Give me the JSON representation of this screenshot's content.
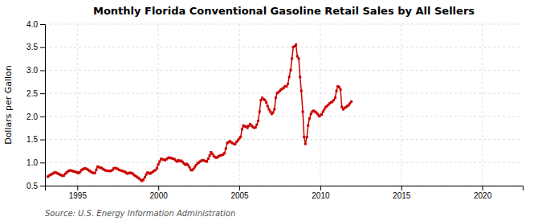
{
  "chart_data": {
    "type": "line",
    "title": "Monthly Florida Conventional Gasoline Retail Sales by All Sellers",
    "ylabel": "Dollars per Gallon",
    "source": "Source: U.S. Energy Information Administration",
    "color": "#cc0000",
    "marker": "square",
    "line_style": "solid",
    "grid": true,
    "xlim": [
      1993.0,
      2022.5
    ],
    "ylim": [
      0.5,
      4.0
    ],
    "xticks": [
      1995,
      2000,
      2005,
      2010,
      2015,
      2020
    ],
    "yticks": [
      0.5,
      {
        "value": 1.0,
        "label": "1.0"
      },
      1.5,
      {
        "value": 2.0,
        "label": "2.0"
      },
      2.5,
      {
        "value": 3.0,
        "label": "3.0"
      },
      3.5,
      {
        "value": 4.0,
        "label": "4.0"
      }
    ],
    "x": [
      1993.17,
      1993.25,
      1993.33,
      1993.42,
      1993.5,
      1993.58,
      1993.67,
      1993.75,
      1993.83,
      1993.92,
      1994.0,
      1994.08,
      1994.17,
      1994.25,
      1994.33,
      1994.42,
      1994.5,
      1994.58,
      1994.67,
      1994.75,
      1994.83,
      1994.92,
      1995.0,
      1995.08,
      1995.17,
      1995.25,
      1995.33,
      1995.42,
      1995.5,
      1995.58,
      1995.67,
      1995.75,
      1995.83,
      1995.92,
      1996.0,
      1996.08,
      1996.17,
      1996.25,
      1996.33,
      1996.42,
      1996.5,
      1996.58,
      1996.67,
      1996.75,
      1996.83,
      1996.92,
      1997.0,
      1997.08,
      1997.17,
      1997.25,
      1997.33,
      1997.42,
      1997.5,
      1997.58,
      1997.67,
      1997.75,
      1997.83,
      1997.92,
      1998.0,
      1998.08,
      1998.17,
      1998.25,
      1998.33,
      1998.42,
      1998.5,
      1998.58,
      1998.67,
      1998.75,
      1998.83,
      1998.92,
      1999.0,
      1999.08,
      1999.17,
      1999.25,
      1999.33,
      1999.42,
      1999.5,
      1999.58,
      1999.67,
      1999.75,
      1999.83,
      1999.92,
      2000.0,
      2000.08,
      2000.17,
      2000.25,
      2000.33,
      2000.42,
      2000.5,
      2000.58,
      2000.67,
      2000.75,
      2000.83,
      2000.92,
      2001.0,
      2001.08,
      2001.17,
      2001.25,
      2001.33,
      2001.42,
      2001.5,
      2001.58,
      2001.67,
      2001.75,
      2001.83,
      2001.92,
      2002.0,
      2002.08,
      2002.17,
      2002.25,
      2002.33,
      2002.42,
      2002.5,
      2002.58,
      2002.67,
      2002.75,
      2002.83,
      2002.92,
      2003.0,
      2003.08,
      2003.17,
      2003.25,
      2003.33,
      2003.42,
      2003.5,
      2003.58,
      2003.67,
      2003.75,
      2003.83,
      2003.92,
      2004.0,
      2004.08,
      2004.17,
      2004.25,
      2004.33,
      2004.42,
      2004.5,
      2004.58,
      2004.67,
      2004.75,
      2004.83,
      2004.92,
      2005.0,
      2005.08,
      2005.17,
      2005.25,
      2005.33,
      2005.42,
      2005.5,
      2005.58,
      2005.67,
      2005.75,
      2005.83,
      2005.92,
      2006.0,
      2006.08,
      2006.17,
      2006.25,
      2006.33,
      2006.42,
      2006.5,
      2006.58,
      2006.67,
      2006.75,
      2006.83,
      2006.92,
      2007.0,
      2007.08,
      2007.17,
      2007.25,
      2007.33,
      2007.42,
      2007.5,
      2007.58,
      2007.67,
      2007.75,
      2007.83,
      2007.92,
      2008.0,
      2008.08,
      2008.17,
      2008.25,
      2008.33,
      2008.42,
      2008.5,
      2008.58,
      2008.67,
      2008.75,
      2008.83,
      2008.92,
      2009.0,
      2009.08,
      2009.17,
      2009.25,
      2009.33,
      2009.42,
      2009.5,
      2009.58,
      2009.67,
      2009.75,
      2009.83,
      2009.92,
      2010.0,
      2010.08,
      2010.17,
      2010.25,
      2010.33,
      2010.42,
      2010.5,
      2010.58,
      2010.67,
      2010.75,
      2010.83,
      2010.92,
      2011.0,
      2011.08,
      2011.17,
      2011.25,
      2011.33,
      2011.42,
      2011.5,
      2011.58,
      2011.67,
      2011.75,
      2011.83,
      2011.92
    ],
    "values": [
      0.693,
      0.714,
      0.736,
      0.748,
      0.763,
      0.784,
      0.783,
      0.768,
      0.757,
      0.74,
      0.728,
      0.713,
      0.72,
      0.756,
      0.782,
      0.809,
      0.826,
      0.83,
      0.823,
      0.81,
      0.804,
      0.793,
      0.786,
      0.772,
      0.795,
      0.836,
      0.852,
      0.87,
      0.872,
      0.861,
      0.843,
      0.821,
      0.8,
      0.784,
      0.773,
      0.772,
      0.843,
      0.912,
      0.9,
      0.89,
      0.881,
      0.861,
      0.843,
      0.829,
      0.82,
      0.822,
      0.815,
      0.82,
      0.841,
      0.874,
      0.882,
      0.87,
      0.862,
      0.84,
      0.83,
      0.822,
      0.811,
      0.8,
      0.783,
      0.76,
      0.772,
      0.779,
      0.773,
      0.761,
      0.73,
      0.712,
      0.692,
      0.671,
      0.651,
      0.62,
      0.602,
      0.634,
      0.682,
      0.742,
      0.783,
      0.773,
      0.759,
      0.782,
      0.8,
      0.822,
      0.841,
      0.882,
      0.961,
      1.022,
      1.08,
      1.071,
      1.062,
      1.053,
      1.072,
      1.094,
      1.11,
      1.1,
      1.092,
      1.083,
      1.072,
      1.042,
      1.022,
      1.05,
      1.031,
      1.041,
      1.012,
      0.981,
      0.952,
      0.97,
      0.95,
      0.9,
      0.842,
      0.832,
      0.861,
      0.902,
      0.943,
      0.983,
      1.002,
      1.022,
      1.042,
      1.052,
      1.041,
      1.031,
      1.021,
      1.083,
      1.153,
      1.223,
      1.192,
      1.143,
      1.121,
      1.103,
      1.122,
      1.143,
      1.154,
      1.163,
      1.173,
      1.202,
      1.303,
      1.422,
      1.441,
      1.462,
      1.441,
      1.422,
      1.402,
      1.402,
      1.452,
      1.482,
      1.522,
      1.553,
      1.723,
      1.803,
      1.783,
      1.783,
      1.753,
      1.793,
      1.833,
      1.802,
      1.773,
      1.753,
      1.763,
      1.822,
      1.903,
      2.103,
      2.352,
      2.402,
      2.372,
      2.352,
      2.302,
      2.222,
      2.153,
      2.103,
      2.053,
      2.083,
      2.153,
      2.403,
      2.503,
      2.523,
      2.553,
      2.583,
      2.603,
      2.623,
      2.653,
      2.653,
      2.703,
      2.853,
      3.003,
      3.253,
      3.503,
      3.523,
      3.553,
      3.303,
      3.253,
      2.853,
      2.553,
      2.103,
      1.553,
      1.403,
      1.553,
      1.803,
      1.953,
      2.053,
      2.103,
      2.123,
      2.103,
      2.083,
      2.053,
      2.003,
      2.023,
      2.043,
      2.103,
      2.153,
      2.203,
      2.223,
      2.253,
      2.283,
      2.303,
      2.323,
      2.353,
      2.403,
      2.553,
      2.653,
      2.633,
      2.583,
      2.203,
      2.153,
      2.183,
      2.203,
      2.223,
      2.243,
      2.283,
      2.323
    ]
  }
}
